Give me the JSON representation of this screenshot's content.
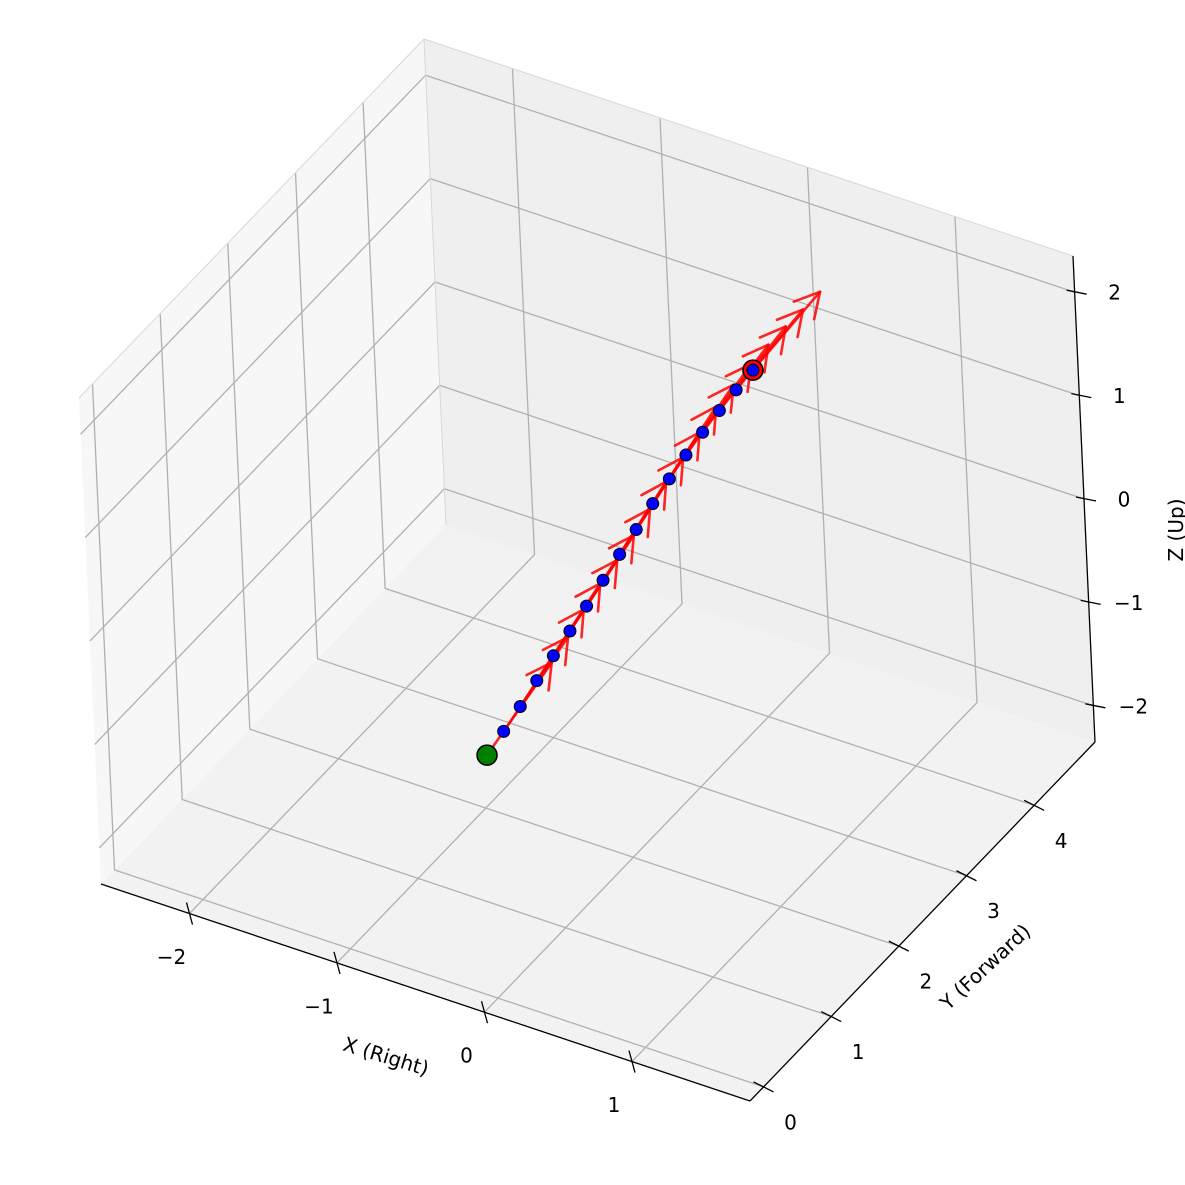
{
  "chart_data": {
    "type": "scatter",
    "projection": "3d",
    "xlabel": "X (Right)",
    "ylabel": "Y (Forward)",
    "zlabel": "Z (Up)",
    "xlim": [
      -2.6,
      1.8
    ],
    "ylim": [
      -0.2,
      4.9
    ],
    "zlim": [
      -2.35,
      2.35
    ],
    "x_ticks": [
      {
        "v": -2,
        "label": "−2"
      },
      {
        "v": -1,
        "label": "−1"
      },
      {
        "v": 0,
        "label": "0"
      },
      {
        "v": 1,
        "label": "1"
      }
    ],
    "y_ticks": [
      {
        "v": 0,
        "label": "0"
      },
      {
        "v": 1,
        "label": "1"
      },
      {
        "v": 2,
        "label": "2"
      },
      {
        "v": 3,
        "label": "3"
      },
      {
        "v": 4,
        "label": "4"
      }
    ],
    "z_ticks": [
      {
        "v": -2,
        "label": "−2"
      },
      {
        "v": -1,
        "label": "−1"
      },
      {
        "v": 0,
        "label": "0"
      },
      {
        "v": 1,
        "label": "1"
      },
      {
        "v": 2,
        "label": "2"
      }
    ],
    "grid": true,
    "start_point": {
      "x": 0.0,
      "y": 0.0,
      "z": 0.0,
      "color": "#008000"
    },
    "end_point": {
      "x": 0.0,
      "y": 4.0,
      "z": 1.0,
      "color": "#ff0000"
    },
    "trajectory": {
      "color": "#0000ff",
      "points": [
        {
          "x": 0.0,
          "y": 0.0,
          "z": 0.0
        },
        {
          "x": 0.0,
          "y": 0.25,
          "z": 0.06
        },
        {
          "x": 0.0,
          "y": 0.5,
          "z": 0.13
        },
        {
          "x": 0.0,
          "y": 0.75,
          "z": 0.21
        },
        {
          "x": 0.0,
          "y": 1.0,
          "z": 0.28
        },
        {
          "x": 0.0,
          "y": 1.25,
          "z": 0.35
        },
        {
          "x": 0.0,
          "y": 1.5,
          "z": 0.42
        },
        {
          "x": 0.0,
          "y": 1.75,
          "z": 0.5
        },
        {
          "x": 0.0,
          "y": 2.0,
          "z": 0.58
        },
        {
          "x": 0.0,
          "y": 2.25,
          "z": 0.65
        },
        {
          "x": 0.0,
          "y": 2.5,
          "z": 0.73
        },
        {
          "x": 0.0,
          "y": 2.75,
          "z": 0.8
        },
        {
          "x": 0.0,
          "y": 3.0,
          "z": 0.86
        },
        {
          "x": 0.0,
          "y": 3.25,
          "z": 0.91
        },
        {
          "x": 0.0,
          "y": 3.5,
          "z": 0.95
        },
        {
          "x": 0.0,
          "y": 3.75,
          "z": 0.98
        },
        {
          "x": 0.0,
          "y": 4.0,
          "z": 1.0
        }
      ]
    },
    "direction_vectors": {
      "color": "#ff0000",
      "length": 1.0
    }
  }
}
